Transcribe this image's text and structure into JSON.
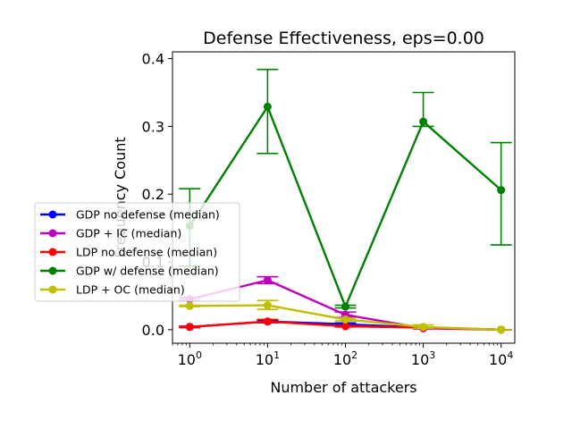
{
  "chart_data": {
    "type": "line",
    "title": "Defense Effectiveness, eps=0.00",
    "xlabel": "Number of attackers",
    "ylabel": "Frequency Count",
    "x_scale": "log",
    "x": [
      1,
      10,
      100,
      1000,
      10000
    ],
    "xlim": [
      0.6,
      15000
    ],
    "ylim": [
      -0.02,
      0.41
    ],
    "x_tick_labels": [
      {
        "base": "10",
        "exp": "0",
        "value": 1
      },
      {
        "base": "10",
        "exp": "1",
        "value": 10
      },
      {
        "base": "10",
        "exp": "2",
        "value": 100
      },
      {
        "base": "10",
        "exp": "3",
        "value": 1000
      },
      {
        "base": "10",
        "exp": "4",
        "value": 10000
      }
    ],
    "y_ticks": [
      0.0,
      0.1,
      0.2,
      0.3,
      0.4
    ],
    "y_tick_labels": [
      "0.0",
      "0.1",
      "0.2",
      "0.3",
      "0.4"
    ],
    "legend_position": "left",
    "series": [
      {
        "name": "GDP no defense (median)",
        "color": "#0000ff",
        "values": [
          0.004,
          0.012,
          0.008,
          0.003,
          0.0
        ],
        "err_low": [
          0.003,
          0.01,
          0.006,
          0.002,
          0.0
        ],
        "err_high": [
          0.005,
          0.014,
          0.01,
          0.004,
          0.0
        ]
      },
      {
        "name": "GDP + IC (median)",
        "color": "#bf00bf",
        "values": [
          0.045,
          0.073,
          0.022,
          0.002,
          0.0
        ],
        "err_low": [
          0.043,
          0.068,
          0.018,
          0.001,
          0.0
        ],
        "err_high": [
          0.047,
          0.078,
          0.026,
          0.003,
          0.0
        ]
      },
      {
        "name": "LDP no defense (median)",
        "color": "#ff0000",
        "values": [
          0.004,
          0.012,
          0.005,
          0.003,
          0.0
        ],
        "err_low": [
          0.003,
          0.01,
          0.004,
          0.002,
          0.0
        ],
        "err_high": [
          0.005,
          0.015,
          0.006,
          0.004,
          0.0
        ]
      },
      {
        "name": "GDP w/ defense (median)",
        "color": "#008000",
        "values": [
          0.153,
          0.329,
          0.034,
          0.307,
          0.206
        ],
        "err_low": [
          0.094,
          0.26,
          0.032,
          0.3,
          0.125
        ],
        "err_high": [
          0.208,
          0.384,
          0.036,
          0.35,
          0.276
        ]
      },
      {
        "name": "LDP + OC (median)",
        "color": "#bfbf00",
        "values": [
          0.035,
          0.036,
          0.015,
          0.004,
          0.0
        ],
        "err_low": [
          0.034,
          0.03,
          0.013,
          0.002,
          0.0
        ],
        "err_high": [
          0.036,
          0.043,
          0.017,
          0.007,
          0.0
        ]
      }
    ]
  }
}
